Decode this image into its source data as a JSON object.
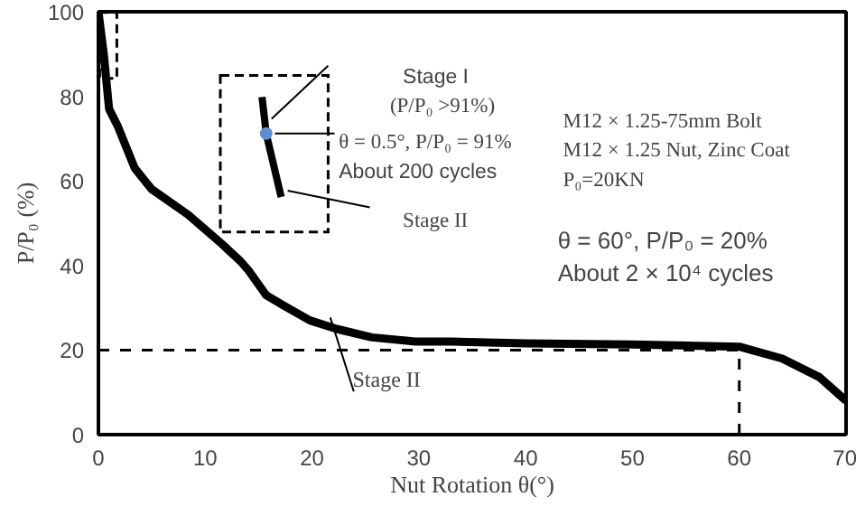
{
  "chart_data": {
    "type": "line",
    "xlabel": "Nut Rotation θ(°)",
    "ylabel": "P/P₀ (%)",
    "x": [
      0,
      0.5,
      1,
      1.8,
      3.4,
      5,
      8.4,
      11.6,
      13.3,
      14,
      15.7,
      17.3,
      19.8,
      22.3,
      25.6,
      29.7,
      33,
      40,
      50,
      60,
      64,
      67.5,
      70
    ],
    "series": [
      {
        "color": "#000000",
        "values": [
          100,
          90,
          77,
          73,
          63,
          58,
          52,
          45,
          41,
          39,
          33,
          30.6,
          27,
          25,
          23,
          22,
          22,
          21.6,
          21.3,
          20.8,
          18,
          13.6,
          8
        ]
      }
    ],
    "xlim": [
      0,
      70
    ],
    "ylim": [
      0,
      100
    ],
    "xticks": [
      0,
      10,
      20,
      30,
      40,
      50,
      60,
      70
    ],
    "yticks": [
      0,
      20,
      40,
      60,
      80,
      100
    ],
    "grid": false,
    "marker": "none",
    "line_style": "solid",
    "ref_lines": [
      {
        "axis": "y",
        "value": 20,
        "line_style": "dashed"
      },
      {
        "axis": "x",
        "value": 60,
        "line_style": "dashed"
      }
    ],
    "annotations": [
      "Stage I",
      "(P/P₀ >91%)",
      "θ = 0.5°, P/P₀ = 91%",
      "About 200 cycles",
      "Stage II",
      "M12 × 1.25-75mm Bolt",
      "M12 × 1.25 Nut, Zinc Coat",
      "P₀=20KN",
      {
        "text": "θ = 60°, P/P₀ = 20%\nAbout 2 × 10⁴ cycles",
        "x": 60,
        "y": 20
      },
      {
        "text": "Stage II",
        "x": 22.3,
        "y": 25
      }
    ]
  }
}
